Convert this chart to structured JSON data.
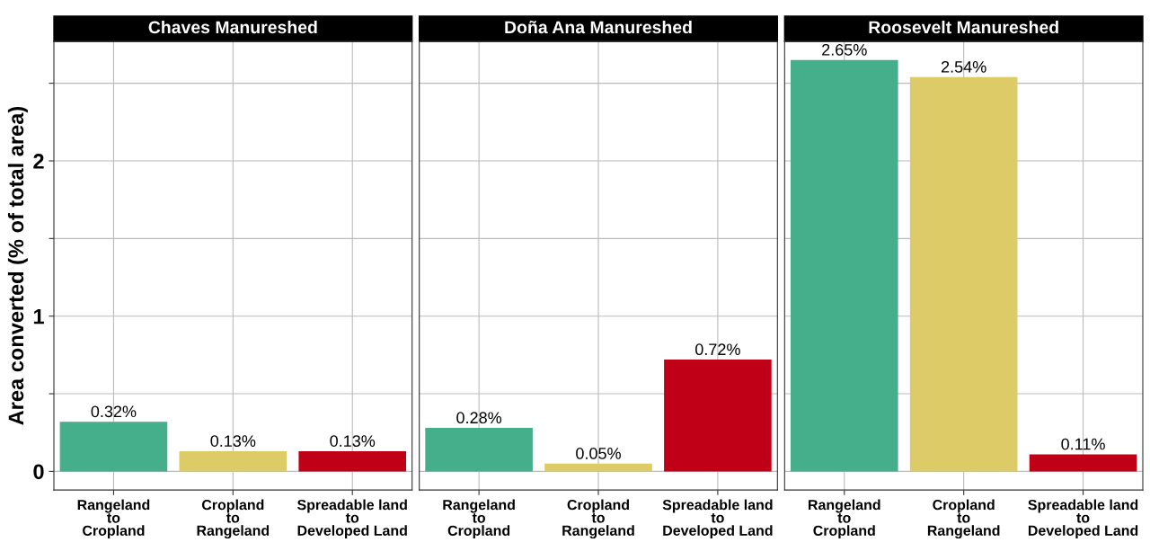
{
  "chart_data": [
    {
      "type": "bar",
      "title": "Chaves Manureshed",
      "ylabel": "Area converted (% of total area)",
      "categories": [
        "Rangeland\nto\nCropland",
        "Cropland\nto\nRangeland",
        "Spreadable land\nto\nDeveloped Land"
      ],
      "values": [
        0.32,
        0.13,
        0.13
      ],
      "colors": [
        "#45ae8a",
        "#dccb67",
        "#c00017"
      ],
      "value_labels": [
        "0.32%",
        "0.13%",
        "0.13%"
      ],
      "ylim": [
        -0.12,
        2.77
      ],
      "yticks": [
        0,
        {
          "value": 0.5,
          "label": null
        },
        1,
        {
          "value": 1.5,
          "label": null
        },
        2,
        {
          "value": 2.5,
          "label": null
        }
      ],
      "grid": true
    },
    {
      "type": "bar",
      "title": "Doña Ana Manureshed",
      "categories": [
        "Rangeland\nto\nCropland",
        "Cropland\nto\nRangeland",
        "Spreadable land\nto\nDeveloped Land"
      ],
      "values": [
        0.28,
        0.05,
        0.72
      ],
      "colors": [
        "#45ae8a",
        "#dccb67",
        "#c00017"
      ],
      "value_labels": [
        "0.28%",
        "0.05%",
        "0.72%"
      ],
      "ylim": [
        -0.12,
        2.77
      ],
      "yticks": [
        0,
        {
          "value": 0.5,
          "label": null
        },
        1,
        {
          "value": 1.5,
          "label": null
        },
        2,
        {
          "value": 2.5,
          "label": null
        }
      ],
      "grid": true,
      "tick_labels": "x"
    },
    {
      "type": "bar",
      "title": "Roosevelt Manureshed",
      "categories": [
        "Rangeland\nto\nCropland",
        "Cropland\nto\nRangeland",
        "Spreadable land\nto\nDeveloped Land"
      ],
      "values": [
        2.65,
        2.54,
        0.11
      ],
      "colors": [
        "#45ae8a",
        "#dccb67",
        "#c00017"
      ],
      "value_labels": [
        "2.65%",
        "2.54%",
        "0.11%"
      ],
      "ylim": [
        -0.12,
        2.77
      ],
      "yticks": [
        0,
        {
          "value": 0.5,
          "label": null
        },
        1,
        {
          "value": 1.5,
          "label": null
        },
        2,
        {
          "value": 2.5,
          "label": null
        }
      ],
      "grid": true,
      "tick_labels": "x"
    }
  ]
}
